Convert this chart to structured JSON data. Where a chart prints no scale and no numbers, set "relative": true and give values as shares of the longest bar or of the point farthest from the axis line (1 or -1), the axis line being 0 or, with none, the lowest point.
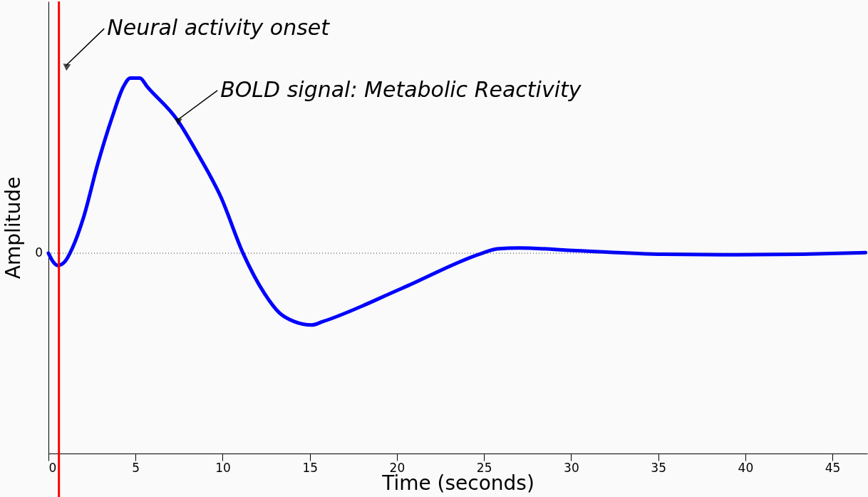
{
  "chart_data": {
    "type": "line",
    "relative": true,
    "xlabel": "Time (seconds)",
    "ylabel": "Amplitude",
    "x": [
      0,
      0.25,
      0.54,
      0.96,
      1.375,
      2.0,
      2.83,
      3.67,
      4.3,
      4.7,
      5.25,
      5.67,
      7.4,
      8.67,
      9.9,
      11.17,
      12.4,
      13.25,
      14.1,
      15.1,
      15.75,
      20.3,
      24.9,
      25.75,
      27,
      30.3,
      35.3,
      39.5,
      43.25,
      46.9
    ],
    "series": [
      {
        "color": "#0000ff",
        "values": [
          0,
          -0.046,
          -0.07,
          -0.046,
          0.03,
          0.2,
          0.51,
          0.78,
          0.95,
          1.0,
          1.0,
          0.95,
          0.76,
          0.55,
          0.32,
          0,
          -0.23,
          -0.34,
          -0.39,
          -0.41,
          -0.39,
          -0.2,
          0,
          0.025,
          0.03,
          0.015,
          -0.006,
          -0.009,
          -0.006,
          0.003
        ]
      }
    ],
    "xlim": [
      0,
      47
    ],
    "xticks": [
      0,
      5,
      10,
      15,
      20,
      25,
      30,
      35,
      40,
      45
    ],
    "ref_lines": [
      {
        "axis": "x",
        "value": 0.6,
        "color": "#ff0000"
      },
      {
        "axis": "y",
        "value": 0,
        "label": "0",
        "line_style": "dotted"
      }
    ],
    "annotations": [
      "Neural activity onset",
      {
        "text": "BOLD signal: Metabolic Reactivity",
        "x": 7.4,
        "y": 0.76
      }
    ],
    "grid": false
  }
}
